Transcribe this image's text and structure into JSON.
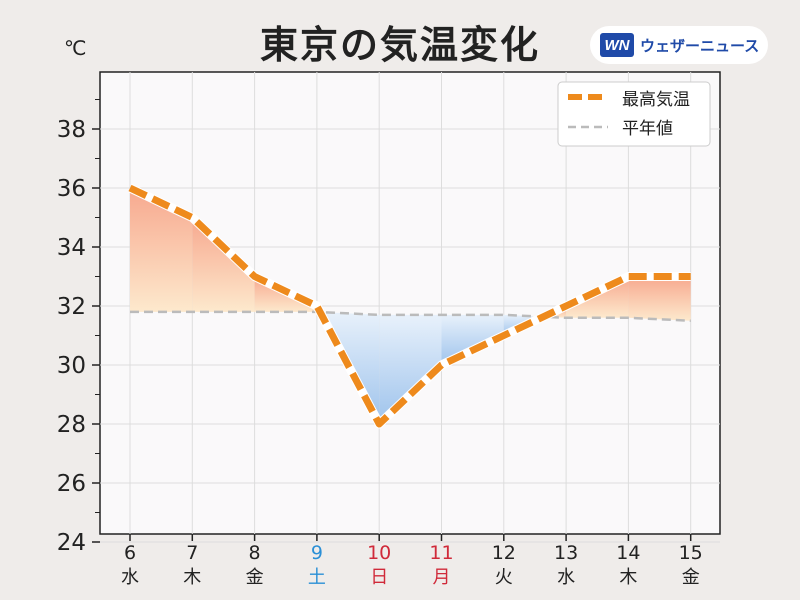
{
  "header": {
    "title": "東京の気温変化",
    "unit": "℃",
    "logo_mark": "WN",
    "logo_text": "ウェザーニュース"
  },
  "colors": {
    "series_max": "#ee8a1c",
    "series_normal": "#bbbbbb",
    "above_fill_top": "#f7a88e",
    "above_fill_bottom": "#fde9cd",
    "below_fill_top": "#e8f1fb",
    "below_fill_bottom": "#9ec3ec",
    "saturday": "#2a8fd6",
    "sunday": "#d02a3a",
    "weekday": "#222222"
  },
  "chart_data": {
    "type": "line",
    "title": "東京の気温変化",
    "ylabel": "℃",
    "ylim": [
      24,
      39.5
    ],
    "yticks": [
      24,
      26,
      28,
      30,
      32,
      34,
      36,
      38
    ],
    "grid": true,
    "legend_position": "top-right",
    "categories": [
      {
        "date": "6",
        "weekday": "水",
        "kind": "weekday"
      },
      {
        "date": "7",
        "weekday": "木",
        "kind": "weekday"
      },
      {
        "date": "8",
        "weekday": "金",
        "kind": "weekday"
      },
      {
        "date": "9",
        "weekday": "土",
        "kind": "saturday"
      },
      {
        "date": "10",
        "weekday": "日",
        "kind": "sunday"
      },
      {
        "date": "11",
        "weekday": "月",
        "kind": "sunday"
      },
      {
        "date": "12",
        "weekday": "火",
        "kind": "weekday"
      },
      {
        "date": "13",
        "weekday": "水",
        "kind": "weekday"
      },
      {
        "date": "14",
        "weekday": "木",
        "kind": "weekday"
      },
      {
        "date": "15",
        "weekday": "金",
        "kind": "weekday"
      }
    ],
    "series": [
      {
        "name": "最高気温",
        "style": "dashed-thick",
        "values": [
          36,
          35,
          33,
          32,
          28,
          30,
          31,
          32,
          33,
          33
        ]
      },
      {
        "name": "平年値",
        "style": "dashed-thin",
        "values": [
          31.8,
          31.8,
          31.8,
          31.8,
          31.7,
          31.7,
          31.7,
          31.6,
          31.6,
          31.5
        ]
      }
    ]
  }
}
